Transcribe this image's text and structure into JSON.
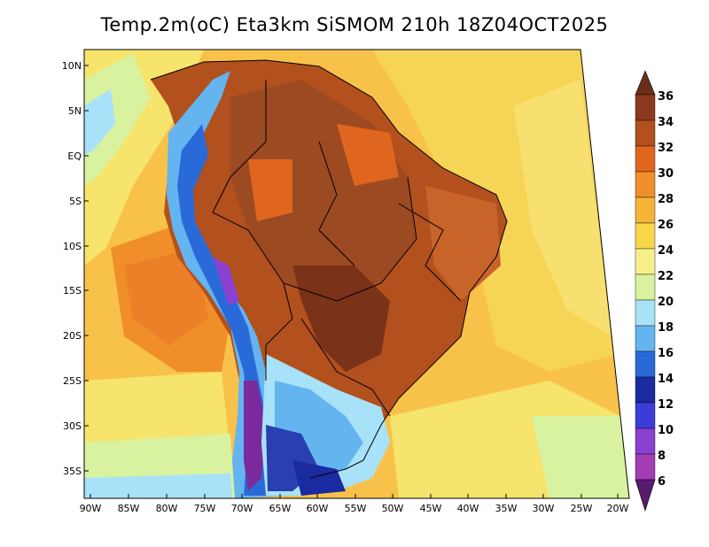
{
  "title": "Temp.2m(oC) Eta3km SiSMOM 210h 18Z04OCT2025",
  "lat_labels": [
    "10N",
    "5N",
    "EQ",
    "5S",
    "10S",
    "15S",
    "20S",
    "25S",
    "30S",
    "35S"
  ],
  "lon_labels": [
    "90W",
    "85W",
    "80W",
    "75W",
    "70W",
    "65W",
    "60W",
    "55W",
    "50W",
    "45W",
    "40W",
    "35W",
    "30W",
    "25W",
    "20W"
  ],
  "colorbar": {
    "labels": [
      "36",
      "34",
      "32",
      "30",
      "28",
      "26",
      "24",
      "22",
      "20",
      "18",
      "16",
      "14",
      "12",
      "10",
      "8",
      "6"
    ],
    "colors": [
      "#6b2e1a",
      "#8b3a1e",
      "#b2501e",
      "#e0661f",
      "#f08f2a",
      "#f6b437",
      "#f8d84a",
      "#f6f08c",
      "#d8f2a0",
      "#a8e2f8",
      "#64b4f0",
      "#2a6ad8",
      "#1a2aa0",
      "#3c3cd8",
      "#8a40d0",
      "#a43cb4",
      "#5a1a6e"
    ]
  },
  "field_colors": {
    "ocean_warm": "#f2a23a",
    "ocean_mid": "#f8c24a",
    "ocean_cool": "#f6e46c",
    "ocean_cold": "#e8f08c",
    "land_hot": "#9c4a22",
    "land_warm": "#c8642a",
    "land_dark": "#7a3218",
    "andes_cold": "#4a70e0",
    "andes_blue": "#2a40b0",
    "andes_purple": "#7a2a9c",
    "south_cool": "#7ab8f0",
    "south_light": "#a8d8f8",
    "border_line": "#000000"
  }
}
